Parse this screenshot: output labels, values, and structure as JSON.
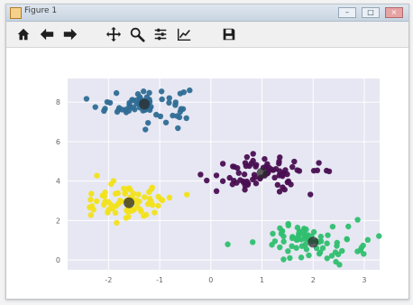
{
  "window": {
    "title": "Figure 1",
    "controls": [
      "–",
      "□",
      "×"
    ]
  },
  "toolbar": {
    "items": [
      {
        "name": "home",
        "icon": "home-icon"
      },
      {
        "name": "back",
        "icon": "arrow-left-icon"
      },
      {
        "name": "forward",
        "icon": "arrow-right-icon"
      },
      {
        "name": "pan",
        "icon": "move-icon"
      },
      {
        "name": "zoom",
        "icon": "zoom-icon"
      },
      {
        "name": "subplots",
        "icon": "sliders-icon"
      },
      {
        "name": "edit-axis",
        "icon": "line-chart-icon"
      },
      {
        "name": "save",
        "icon": "save-icon"
      }
    ]
  },
  "colors": {
    "plot_bg": "#e6e7f2",
    "grid": "#ffffff",
    "cluster_blue": "#2f6d95",
    "cluster_purple": "#4a0f52",
    "cluster_yellow": "#f2e11a",
    "cluster_green": "#2fbf6f",
    "centroid": "#2b2b2b"
  },
  "chart_data": {
    "type": "scatter",
    "xlim": [
      -2.8,
      3.3
    ],
    "ylim": [
      -0.5,
      9.2
    ],
    "xticks": [
      -2,
      -1,
      0,
      1,
      2,
      3
    ],
    "yticks": [
      0,
      2,
      4,
      6,
      8
    ],
    "grid": true,
    "clusters": [
      {
        "name": "",
        "center": [
          -1.3,
          7.9
        ],
        "spread": [
          0.45,
          0.45
        ],
        "count": 70,
        "color": "#2f6d95"
      },
      {
        "name": "",
        "center": [
          0.9,
          4.4
        ],
        "spread": [
          0.55,
          0.45
        ],
        "count": 80,
        "color": "#4a0f52"
      },
      {
        "name": "",
        "center": [
          -1.6,
          2.9
        ],
        "spread": [
          0.45,
          0.45
        ],
        "count": 75,
        "color": "#f2e11a"
      },
      {
        "name": "",
        "center": [
          2.0,
          0.9
        ],
        "spread": [
          0.55,
          0.45
        ],
        "count": 80,
        "color": "#2fbf6f"
      }
    ],
    "centroids": [
      {
        "x": -1.3,
        "y": 7.9
      },
      {
        "x": 1.0,
        "y": 4.4
      },
      {
        "x": -1.6,
        "y": 2.9
      },
      {
        "x": 2.0,
        "y": 0.9
      }
    ]
  }
}
